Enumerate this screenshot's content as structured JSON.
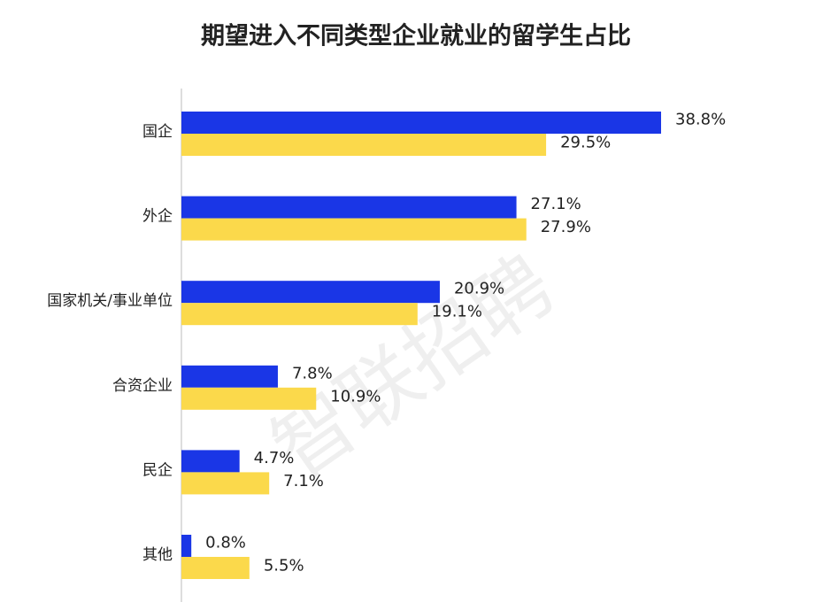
{
  "chart_data": {
    "type": "bar",
    "orientation": "horizontal",
    "title": "期望进入不同类型企业就业的留学生占比",
    "watermark": "智联招聘",
    "categories": [
      "国企",
      "外企",
      "国家机关/事业单位",
      "合资企业",
      "民企",
      "其他"
    ],
    "series": [
      {
        "color": "#1a36e6",
        "values": [
          38.8,
          27.1,
          20.9,
          7.8,
          4.7,
          0.8
        ],
        "value_labels": [
          "38.8%",
          "27.1%",
          "20.9%",
          "7.8%",
          "4.7%",
          "0.8%"
        ]
      },
      {
        "color": "#fbd94b",
        "values": [
          29.5,
          27.9,
          19.1,
          10.9,
          7.1,
          5.5
        ],
        "value_labels": [
          "29.5%",
          "27.9%",
          "19.1%",
          "10.9%",
          "7.1%",
          "5.5%"
        ]
      }
    ]
  }
}
